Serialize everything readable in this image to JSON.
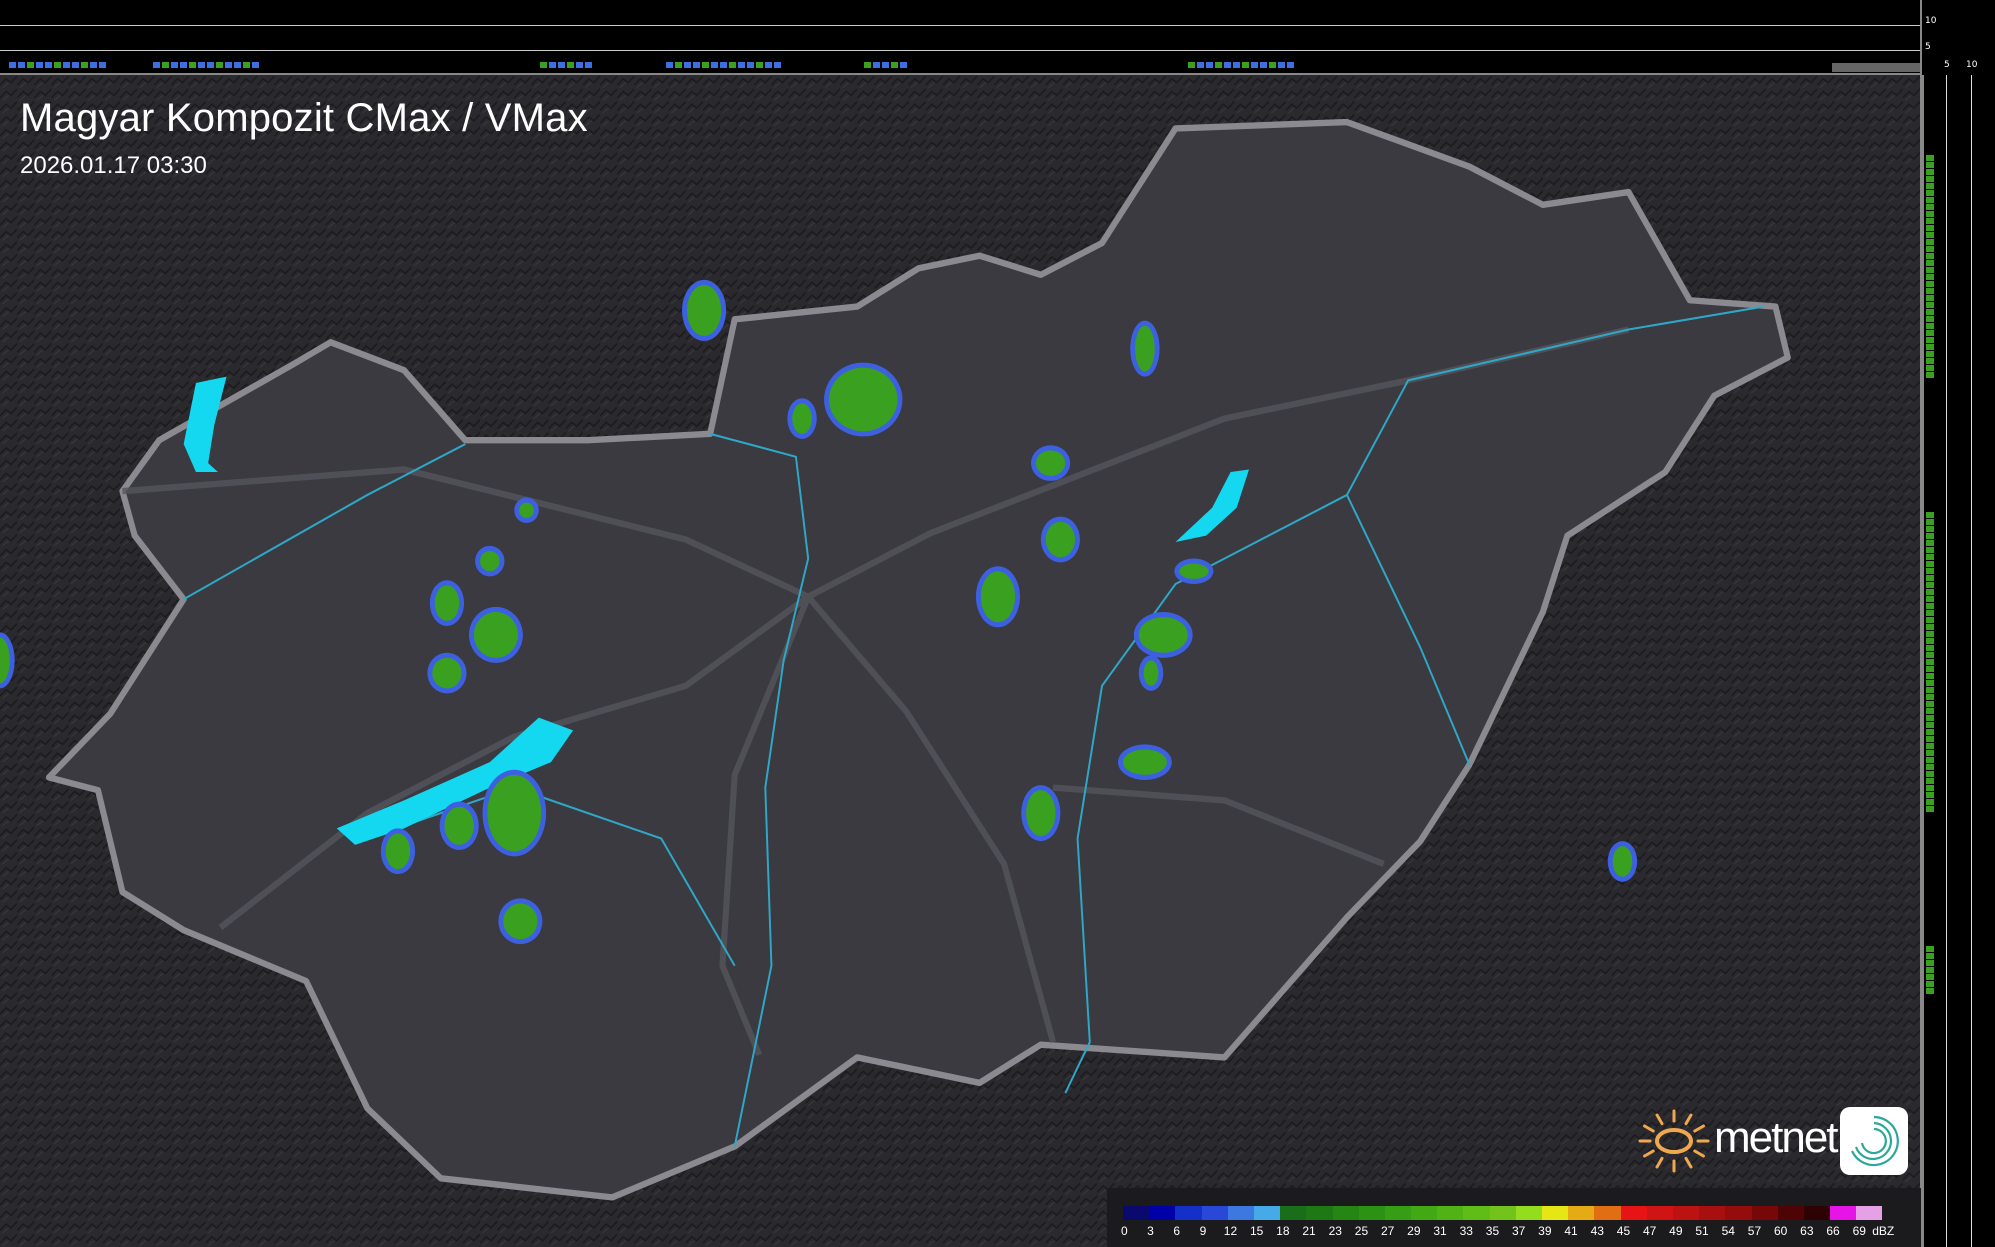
{
  "header": {
    "title": "Magyar Kompozit CMax / VMax",
    "timestamp": "2026.01.17 03:30"
  },
  "side_profiles": {
    "top_axis_labels": [
      "10",
      "5"
    ],
    "right_axis_labels": [
      "5",
      "10"
    ]
  },
  "legend": {
    "unit": "dBZ",
    "labels": [
      "0",
      "3",
      "6",
      "9",
      "12",
      "15",
      "18",
      "21",
      "23",
      "25",
      "27",
      "29",
      "31",
      "33",
      "35",
      "37",
      "39",
      "41",
      "43",
      "45",
      "47",
      "49",
      "51",
      "54",
      "57",
      "60",
      "63",
      "66",
      "69"
    ],
    "colors": [
      "#0a0a6e",
      "#0000a8",
      "#1430c8",
      "#2848d8",
      "#3c78e0",
      "#46aae8",
      "#1a6e1a",
      "#1e7814",
      "#258614",
      "#2c9214",
      "#359e14",
      "#42a814",
      "#50b214",
      "#60bc16",
      "#72c41c",
      "#94dc1e",
      "#e6e614",
      "#e6aa14",
      "#e26e14",
      "#e61414",
      "#d01414",
      "#bc1212",
      "#a80f0f",
      "#940c0c",
      "#760808",
      "#4e0404",
      "#2e0202",
      "#e614e6",
      "#e6a0e6",
      "#82e6e6"
    ]
  },
  "branding": {
    "logo_text": "metnet",
    "sun_color": "#f0a850",
    "icon_color": "#2aa89a"
  },
  "map_colors": {
    "background": "#2a2a2e",
    "country_fill": "#3a3a40",
    "border": "#8a8a90",
    "rivers": "#2fa8c8",
    "lakes": "#14d8f0"
  }
}
